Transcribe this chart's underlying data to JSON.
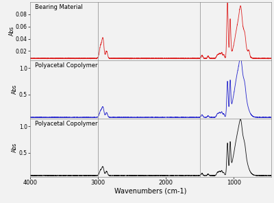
{
  "xlabel": "Wavenumbers (cm-1)",
  "ylabel": "Abs",
  "panel1_label": "Bearing Material",
  "panel2_label": "Polyacetal Copolymer",
  "panel3_label": "Polyacetal Copolymer",
  "panel1_color": "#dd2222",
  "panel2_color": "#2222cc",
  "panel3_color": "#111111",
  "panel1_ylim": [
    0.005,
    0.1
  ],
  "panel2_ylim": [
    0.05,
    1.15
  ],
  "panel3_ylim": [
    0.05,
    1.15
  ],
  "panel1_yticks": [
    0.02,
    0.04,
    0.06,
    0.08
  ],
  "panel2_yticks": [
    0.5,
    1.0
  ],
  "panel3_yticks": [
    0.5,
    1.0
  ],
  "vline_x1": 3000,
  "vline_x2": 1500,
  "background_color": "#f2f2f2",
  "xticks": [
    4000,
    3000,
    2000,
    1000
  ],
  "xticklabels": [
    "4000",
    "3000",
    "2000",
    "1000"
  ]
}
